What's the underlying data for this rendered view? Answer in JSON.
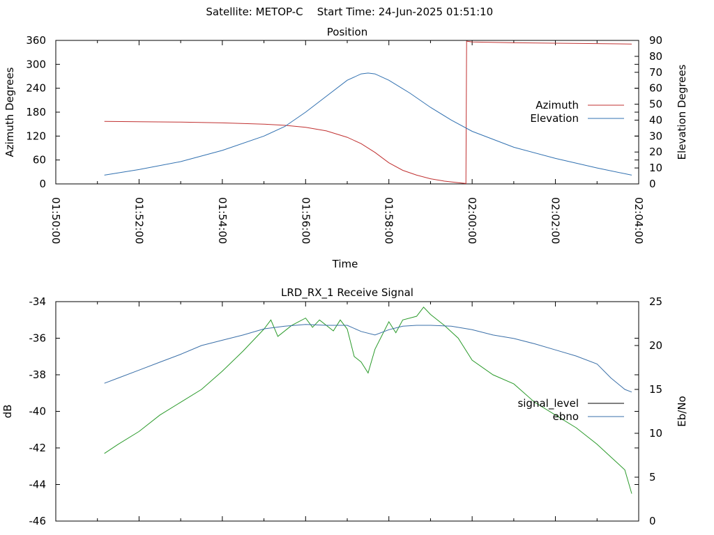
{
  "header": {
    "satellite_label": "Satellite: METOP-C",
    "start_time_label": "Start Time: 24-Jun-2025 01:51:10"
  },
  "chart_data": [
    {
      "type": "line",
      "title": "Position",
      "xlabel": "Time",
      "ylabel": "Azimuth Degrees",
      "y2label": "Elevation Degrees",
      "xticks": [
        "01:50:00",
        "01:52:00",
        "01:54:00",
        "01:56:00",
        "01:58:00",
        "02:00:00",
        "02:02:00",
        "02:04:00"
      ],
      "yticks": [
        "0",
        "60",
        "120",
        "180",
        "240",
        "300",
        "360"
      ],
      "y2ticks": [
        "0",
        "10",
        "20",
        "30",
        "40",
        "50",
        "60",
        "70",
        "80",
        "90"
      ],
      "ylim": [
        0,
        360
      ],
      "y2lim": [
        0,
        90
      ],
      "xlim": [
        "01:50:00",
        "02:04:00"
      ],
      "legend_position": "right",
      "series": [
        {
          "name": "Azimuth",
          "axis": "left",
          "color": "#c03030",
          "x": [
            "01:51:10",
            "01:52:00",
            "01:53:00",
            "01:54:00",
            "01:55:00",
            "01:55:30",
            "01:56:00",
            "01:56:30",
            "01:57:00",
            "01:57:20",
            "01:57:40",
            "01:58:00",
            "01:58:20",
            "01:58:40",
            "01:59:00",
            "01:59:20",
            "01:59:40",
            "01:59:51",
            "01:59:52",
            "02:00:00",
            "02:01:00",
            "02:02:00",
            "02:03:00",
            "02:03:50"
          ],
          "y": [
            157,
            156,
            155,
            153,
            150,
            147,
            142,
            133,
            117,
            101,
            79,
            53,
            34,
            22,
            13,
            7,
            3,
            1,
            358,
            356,
            354,
            353,
            352,
            351
          ]
        },
        {
          "name": "Elevation",
          "axis": "right",
          "color": "#3070b0",
          "x": [
            "01:51:10",
            "01:52:00",
            "01:53:00",
            "01:54:00",
            "01:55:00",
            "01:55:30",
            "01:56:00",
            "01:56:30",
            "01:57:00",
            "01:57:20",
            "01:57:30",
            "01:57:40",
            "01:58:00",
            "01:58:30",
            "01:59:00",
            "01:59:30",
            "02:00:00",
            "02:01:00",
            "02:02:00",
            "02:03:00",
            "02:03:50"
          ],
          "y": [
            5.5,
            9,
            14,
            21,
            30,
            36,
            45,
            55,
            65,
            69,
            69.5,
            69,
            65,
            57,
            48,
            40,
            33,
            23,
            16,
            10,
            5.5
          ]
        }
      ]
    },
    {
      "type": "line",
      "title": "LRD_RX_1 Receive Signal",
      "xlabel": "",
      "ylabel": "dB",
      "y2label": "Eb/No",
      "yticks": [
        "-46",
        "-44",
        "-42",
        "-40",
        "-38",
        "-36",
        "-34"
      ],
      "y2ticks": [
        "0",
        "5",
        "10",
        "15",
        "20",
        "25"
      ],
      "ylim": [
        -46,
        -34
      ],
      "y2lim": [
        0,
        25
      ],
      "xlim": [
        "01:50:00",
        "02:04:00"
      ],
      "legend_position": "right",
      "series": [
        {
          "name": "signal_level",
          "axis": "left",
          "color": "#2a9a2a",
          "x": [
            "01:51:10",
            "01:51:30",
            "01:52:00",
            "01:52:30",
            "01:53:00",
            "01:53:30",
            "01:54:00",
            "01:54:30",
            "01:55:00",
            "01:55:10",
            "01:55:20",
            "01:55:40",
            "01:56:00",
            "01:56:10",
            "01:56:20",
            "01:56:40",
            "01:56:50",
            "01:57:00",
            "01:57:10",
            "01:57:20",
            "01:57:30",
            "01:57:40",
            "01:58:00",
            "01:58:10",
            "01:58:20",
            "01:58:40",
            "01:58:50",
            "01:59:00",
            "01:59:20",
            "01:59:40",
            "02:00:00",
            "02:00:30",
            "02:01:00",
            "02:01:30",
            "02:02:00",
            "02:02:30",
            "02:03:00",
            "02:03:20",
            "02:03:40",
            "02:03:50"
          ],
          "y": [
            -42.3,
            -41.8,
            -41.1,
            -40.2,
            -39.5,
            -38.8,
            -37.8,
            -36.7,
            -35.5,
            -35.0,
            -35.9,
            -35.3,
            -34.9,
            -35.4,
            -35.0,
            -35.6,
            -35.0,
            -35.5,
            -37.0,
            -37.3,
            -37.9,
            -36.6,
            -35.1,
            -35.7,
            -35.0,
            -34.8,
            -34.3,
            -34.7,
            -35.3,
            -36.0,
            -37.2,
            -38.0,
            -38.5,
            -39.5,
            -40.2,
            -40.9,
            -41.8,
            -42.5,
            -43.2,
            -44.5
          ]
        },
        {
          "name": "ebno",
          "axis": "right",
          "color": "#3a6fa8",
          "x": [
            "01:51:10",
            "01:51:30",
            "01:52:00",
            "01:52:30",
            "01:53:00",
            "01:53:30",
            "01:54:00",
            "01:54:30",
            "01:55:00",
            "01:55:30",
            "01:56:00",
            "01:56:30",
            "01:57:00",
            "01:57:20",
            "01:57:40",
            "01:58:00",
            "01:58:20",
            "01:58:40",
            "01:59:00",
            "01:59:30",
            "02:00:00",
            "02:00:30",
            "02:01:00",
            "02:01:30",
            "02:02:00",
            "02:02:30",
            "02:03:00",
            "02:03:20",
            "02:03:40",
            "02:03:50"
          ],
          "y": [
            15.7,
            16.3,
            17.2,
            18.1,
            19.0,
            20.0,
            20.6,
            21.2,
            21.9,
            22.2,
            22.4,
            22.3,
            22.3,
            21.6,
            21.2,
            21.8,
            22.2,
            22.3,
            22.3,
            22.2,
            21.8,
            21.2,
            20.8,
            20.2,
            19.5,
            18.8,
            17.9,
            16.3,
            15.0,
            14.7
          ]
        }
      ]
    }
  ]
}
